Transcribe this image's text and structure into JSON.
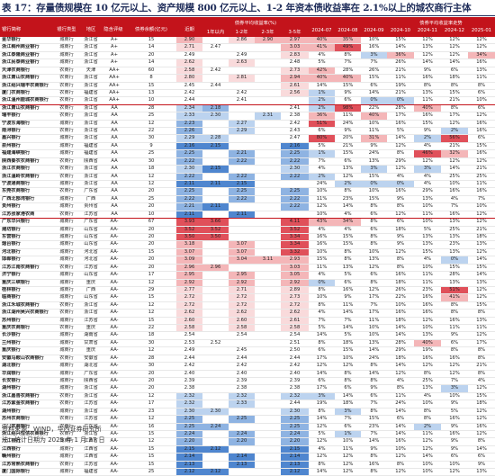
{
  "title": "表 17：存量债规模在 10 亿元以上、资产规模 800 亿元以上、1-2 年资本债收益率在 2.1%以上的城农商行主体",
  "headers": {
    "bank": "银行简称",
    "type": "银行类型",
    "prov": "地区",
    "rating": "隐含评级",
    "size": "债券余额(亿元)",
    "cur": "近期",
    "group_yield": "债券平均收益率(%)",
    "y1": "1年以内",
    "y12": "1-2年",
    "y23": "2-3年",
    "y35": "3-5年",
    "group_trend": "债券平均收益率走势",
    "m0": "2024-07",
    "m1": "2024-08",
    "m2": "2024-09",
    "m3": "2024-10",
    "m4": "2024-11",
    "m5": "2024-12",
    "m6": "2025-01"
  },
  "mid_labels": {
    "a": "银行二级资本债",
    "b": "银行永续债"
  },
  "rows": [
    [
      "金华银行",
      "城商行",
      "浙江省",
      "A+",
      "15",
      "2.90",
      "",
      "2.86",
      "2.90",
      "2.97",
      "40%",
      "35%",
      "10%",
      "15%",
      "12%",
      "12%",
      "12%"
    ],
    [
      "浙江稠州商业银行",
      "城商行",
      "浙江省",
      "A+",
      "14",
      "2.71",
      "2.47",
      "",
      "",
      "3.03",
      "41%",
      "49%",
      "16%",
      "14%",
      "13%",
      "12%",
      "12%"
    ],
    [
      "浙江泰隆商业银行",
      "城商行",
      "浙江省",
      "A+",
      "20",
      "2.49",
      "",
      "2.49",
      "",
      "2.83",
      "4%",
      "8%",
      "3%",
      "36%",
      "12%",
      "12%",
      "34%"
    ],
    [
      "浙江民泰商业银行",
      "城商行",
      "浙江省",
      "A+",
      "14",
      "2.62",
      "",
      "2.63",
      "",
      "2.48",
      "5%",
      "7%",
      "7%",
      "26%",
      "14%",
      "14%",
      "16%"
    ],
    [
      "天津农商银行",
      "农商行",
      "天津",
      "AA+",
      "60",
      "2.58",
      "2.42",
      "",
      "",
      "2.73",
      "42%",
      "28%",
      "26%",
      "21%",
      "9%",
      "6%",
      "13%"
    ],
    [
      "浙江萧山农商银行",
      "农商行",
      "浙江省",
      "AA+",
      "8",
      "2.80",
      "",
      "2.81",
      "",
      "2.94",
      "40%",
      "40%",
      "15%",
      "11%",
      "16%",
      "18%",
      "11%"
    ],
    [
      "浙江绍兴瑞丰农商银行",
      "农商行",
      "浙江省",
      "AA+",
      "15",
      "2.45",
      "2.44",
      "",
      "",
      "2.61",
      "14%",
      "15%",
      "6%",
      "19%",
      "8%",
      "8%",
      "8%"
    ],
    [
      "厦门农商银行",
      "农商行",
      "福建省",
      "AA+",
      "13",
      "2.42",
      "",
      "2.42",
      "",
      "2.56",
      "1%",
      "9%",
      "14%",
      "21%",
      "13%",
      "15%",
      "6%"
    ],
    [
      "浙江温州鹿城农商银行",
      "农商行",
      "浙江省",
      "AA+",
      "10",
      "2.44",
      "",
      "2.41",
      "",
      "",
      "2%",
      "6%",
      "0%",
      "0%",
      "11%",
      "21%",
      "10%"
    ],
    [
      "浙江萧山农商银行",
      "农商行",
      "浙江省",
      "AA",
      "28",
      "2.34",
      "2.18",
      "",
      "",
      "2.41",
      "2%",
      "98%",
      "22%",
      "28%",
      "40%",
      "8%",
      "6%"
    ],
    [
      "瑞丰银行",
      "农商行",
      "浙江省",
      "AA",
      "25",
      "2.33",
      "2.30",
      "",
      "2.31",
      "2.38",
      "36%",
      "11%",
      "40%",
      "17%",
      "16%",
      "17%",
      "12%"
    ],
    [
      "宁波东海银行",
      "城商行",
      "浙江省",
      "AA",
      "12",
      "2.23",
      "",
      "2.27",
      "",
      "2.42",
      "51%",
      "24%",
      "10%",
      "16%",
      "15%",
      "12%",
      "16%"
    ],
    [
      "南浔银行",
      "农商行",
      "浙江省",
      "AA",
      "22",
      "2.26",
      "",
      "2.29",
      "",
      "2.43",
      "6%",
      "9%",
      "11%",
      "5%",
      "9%",
      "2%",
      "16%"
    ],
    [
      "嘉兴银行",
      "城商行",
      "浙江省",
      "AA",
      "30",
      "2.29",
      "2.28",
      "",
      "",
      "2.47",
      "80%",
      "20%",
      "31%",
      "14%",
      "2%",
      "56%",
      "6%"
    ],
    [
      "泉州银行",
      "城商行",
      "福建省",
      "AA",
      "9",
      "2.16",
      "2.15",
      "",
      "",
      "2.16",
      "5%",
      "21%",
      "9%",
      "12%",
      "4%",
      "21%",
      "15%"
    ],
    [
      "福建海峡银行",
      "城商行",
      "福建省",
      "AA",
      "25",
      "2.25",
      "",
      "2.21",
      "",
      "2.25",
      "1%",
      "15%",
      "24%",
      "8%",
      "46%",
      "32%",
      "16%"
    ],
    [
      "陕西秦农农商银行",
      "农商行",
      "陕西省",
      "AA",
      "30",
      "2.22",
      "",
      "2.22",
      "",
      "2.22",
      "7%",
      "6%",
      "13%",
      "29%",
      "12%",
      "12%",
      "12%"
    ],
    [
      "浙江农商银行",
      "农商行",
      "浙江省",
      "AA",
      "18",
      "2.30",
      "2.15",
      "",
      "",
      "2.30",
      "4%",
      "13%",
      "3%",
      "12%",
      "3%",
      "14%",
      "21%"
    ],
    [
      "浙江温岭农商银行",
      "农商行",
      "浙江省",
      "AA",
      "12",
      "2.22",
      "",
      "2.22",
      "",
      "2.22",
      "2%",
      "12%",
      "15%",
      "4%",
      "4%",
      "25%",
      "25%"
    ],
    [
      "宁波通商银行",
      "城商行",
      "浙江省",
      "AA",
      "12",
      "2.11",
      "2.11",
      "2.15",
      "",
      "",
      "24%",
      "2%",
      "0%",
      "0%",
      "4%",
      "10%",
      "11%"
    ],
    [
      "东莞农商银行",
      "农商行",
      "广东省",
      "AA",
      "20",
      "2.25",
      "",
      "2.25",
      "",
      "2.25",
      "10%",
      "8%",
      "10%",
      "16%",
      "29%",
      "16%",
      "16%"
    ],
    [
      "广西北部湾银行",
      "城商行",
      "广西",
      "AA",
      "25",
      "2.22",
      "",
      "2.22",
      "",
      "2.22",
      "11%",
      "23%",
      "15%",
      "9%",
      "13%",
      "4%",
      "7%"
    ],
    [
      "贵州银行",
      "城商行",
      "贵州省",
      "AA",
      "20",
      "2.21",
      "2.11",
      "",
      "",
      "2.22",
      "12%",
      "14%",
      "8%",
      "8%",
      "10%",
      "7%",
      "10%"
    ],
    [
      "江苏张家港农商",
      "农商行",
      "江苏省",
      "AA",
      "10",
      "2.11",
      "",
      "2.11",
      "",
      "",
      "10%",
      "4%",
      "6%",
      "12%",
      "11%",
      "16%",
      "12%"
    ],
    [
      "广东华兴银行",
      "城商行",
      "广东省",
      "AA-",
      "67",
      "3.93",
      "3.66",
      "",
      "",
      "4.11",
      "43%",
      "34%",
      "8%",
      "6%",
      "10%",
      "13%",
      "12%"
    ],
    [
      "潍坊银行",
      "城商行",
      "山东省",
      "AA-",
      "20",
      "3.52",
      "3.52",
      "",
      "",
      "3.52",
      "4%",
      "4%",
      "6%",
      "18%",
      "5%",
      "25%",
      "21%"
    ],
    [
      "东营银行",
      "城商行",
      "山东省",
      "AA-",
      "20",
      "3.50",
      "3.50",
      "",
      "",
      "3.34",
      "16%",
      "15%",
      "8%",
      "9%",
      "13%",
      "13%",
      "18%"
    ],
    [
      "烟台银行",
      "城商行",
      "山东省",
      "AA-",
      "20",
      "3.18",
      "",
      "3.07",
      "",
      "3.34",
      "16%",
      "15%",
      "8%",
      "9%",
      "13%",
      "23%",
      "13%"
    ],
    [
      "河北银行",
      "城商行",
      "河北省",
      "AA-",
      "15",
      "3.07",
      "",
      "3.07",
      "",
      "3.32",
      "10%",
      "8%",
      "10%",
      "12%",
      "15%",
      "13%",
      "12%"
    ],
    [
      "邯郸银行",
      "城商行",
      "河北省",
      "AA-",
      "20",
      "3.09",
      "",
      "3.04",
      "3.11",
      "2.93",
      "15%",
      "8%",
      "13%",
      "8%",
      "4%",
      "0%",
      "14%"
    ],
    [
      "江苏江南农商银行",
      "农商行",
      "江苏省",
      "AA-",
      "20",
      "2.96",
      "2.96",
      "",
      "",
      "3.03",
      "11%",
      "13%",
      "12%",
      "8%",
      "10%",
      "15%",
      "15%"
    ],
    [
      "济宁银行",
      "城商行",
      "山东省",
      "AA-",
      "17",
      "2.95",
      "",
      "2.95",
      "",
      "3.05",
      "4%",
      "5%",
      "6%",
      "16%",
      "11%",
      "28%",
      "14%"
    ],
    [
      "重庆三峡银行",
      "城商行",
      "重庆",
      "AA-",
      "12",
      "2.92",
      "",
      "2.92",
      "",
      "2.92",
      "0%",
      "6%",
      "8%",
      "18%",
      "11%",
      "13%",
      "13%"
    ],
    [
      "桂林银行",
      "城商行",
      "广西",
      "AA-",
      "29",
      "2.77",
      "",
      "2.71",
      "",
      "2.89",
      "8%",
      "16%",
      "12%",
      "26%",
      "23%",
      "51%",
      "12%"
    ],
    [
      "临商银行",
      "城商行",
      "山东省",
      "AA-",
      "15",
      "2.72",
      "",
      "2.72",
      "",
      "2.73",
      "10%",
      "9%",
      "17%",
      "22%",
      "16%",
      "41%",
      "12%"
    ],
    [
      "浙江禾城农商银行",
      "农商行",
      "浙江省",
      "AA-",
      "12",
      "2.72",
      "",
      "2.72",
      "",
      "2.72",
      "8%",
      "11%",
      "7%",
      "10%",
      "16%",
      "8%",
      "15%"
    ],
    [
      "浙江湖州吴兴农商银行",
      "农商行",
      "浙江省",
      "AA-",
      "12",
      "2.62",
      "",
      "2.62",
      "",
      "2.62",
      "4%",
      "14%",
      "17%",
      "16%",
      "16%",
      "8%",
      "8%"
    ],
    [
      "苏州银行",
      "城商行",
      "江苏省",
      "AA-",
      "15",
      "2.60",
      "",
      "2.60",
      "",
      "2.61",
      "7%",
      "7%",
      "11%",
      "18%",
      "12%",
      "16%",
      "13%"
    ],
    [
      "重庆农商银行",
      "农商行",
      "重庆",
      "AA-",
      "22",
      "2.58",
      "",
      "2.58",
      "",
      "2.58",
      "5%",
      "14%",
      "10%",
      "14%",
      "10%",
      "11%",
      "11%"
    ],
    [
      "长沙银行",
      "城商行",
      "湖南省",
      "AA-",
      "18",
      "2.54",
      "",
      "2.54",
      "",
      "2.54",
      "14%",
      "5%",
      "10%",
      "14%",
      "13%",
      "9%",
      "12%"
    ],
    [
      "兰州银行",
      "城商行",
      "甘肃省",
      "AA-",
      "30",
      "2.53",
      "2.52",
      "",
      "",
      "2.51",
      "8%",
      "18%",
      "13%",
      "28%",
      "40%",
      "6%",
      "17%"
    ],
    [
      "重庆银行",
      "城商行",
      "重庆",
      "AA-",
      "12",
      "2.49",
      "",
      "2.45",
      "",
      "2.50",
      "6%",
      "15%",
      "14%",
      "29%",
      "19%",
      "8%",
      "8%"
    ],
    [
      "安徽马鞍山农商银行",
      "农商行",
      "安徽省",
      "AA-",
      "28",
      "2.44",
      "",
      "2.44",
      "",
      "2.44",
      "17%",
      "10%",
      "24%",
      "18%",
      "16%",
      "16%",
      "8%"
    ],
    [
      "湖北银行",
      "城商行",
      "湖北省",
      "AA-",
      "30",
      "2.42",
      "",
      "2.42",
      "",
      "2.42",
      "12%",
      "12%",
      "8%",
      "14%",
      "12%",
      "12%",
      "21%"
    ],
    [
      "华润银行",
      "城商行",
      "广东省",
      "AA-",
      "20",
      "2.40",
      "",
      "2.40",
      "",
      "2.40",
      "14%",
      "8%",
      "14%",
      "12%",
      "8%",
      "12%",
      "8%"
    ],
    [
      "长安银行",
      "城商行",
      "陕西省",
      "AA-",
      "20",
      "2.39",
      "",
      "2.39",
      "",
      "2.39",
      "6%",
      "8%",
      "8%",
      "4%",
      "25%",
      "7%",
      "4%"
    ],
    [
      "湖州银行",
      "城商行",
      "浙江省",
      "AA-",
      "20",
      "2.38",
      "",
      "2.38",
      "",
      "2.38",
      "17%",
      "6%",
      "9%",
      "8%",
      "13%",
      "3%",
      "12%"
    ],
    [
      "浙江嘉善农商银行",
      "农商行",
      "浙江省",
      "AA-",
      "12",
      "2.32",
      "",
      "2.32",
      "",
      "2.32",
      "3%",
      "14%",
      "6%",
      "11%",
      "4%",
      "10%",
      "15%"
    ],
    [
      "江苏紫金农商银行",
      "农商行",
      "江苏省",
      "AA-",
      "17",
      "2.32",
      "",
      "2.33",
      "",
      "2.44",
      "19%",
      "18%",
      "7%",
      "24%",
      "10%",
      "9%",
      "18%"
    ],
    [
      "湖州银行",
      "城商行",
      "浙江省",
      "AA-",
      "23",
      "2.30",
      "2.30",
      "",
      "",
      "2.30",
      "8%",
      "3%",
      "8%",
      "14%",
      "8%",
      "5%",
      "12%"
    ],
    [
      "苏州农商银行",
      "农商行",
      "江苏省",
      "AA-",
      "12",
      "2.25",
      "",
      "2.25",
      "",
      "2.25",
      "14%",
      "7%",
      "15%",
      "6%",
      "8%",
      "16%",
      "12%"
    ],
    [
      "江门农商银行",
      "农商行",
      "广东省",
      "AA-",
      "16",
      "2.25",
      "2.24",
      "",
      "",
      "2.25",
      "12%",
      "6%",
      "23%",
      "14%",
      "2%",
      "9%",
      "16%"
    ],
    [
      "浙江绍兴恒信农商银行",
      "农商行",
      "浙江省",
      "AA-",
      "15",
      "2.24",
      "",
      "2.24",
      "",
      "2.24",
      "5%",
      "1%",
      "7%",
      "14%",
      "11%",
      "16%",
      "12%"
    ],
    [
      "九江银行",
      "城商行",
      "江西省",
      "AA-",
      "12",
      "2.20",
      "",
      "2.20",
      "",
      "2.20",
      "12%",
      "10%",
      "14%",
      "16%",
      "12%",
      "9%",
      "8%"
    ],
    [
      "江西银行",
      "城商行",
      "江西省",
      "AA-",
      "15",
      "2.15",
      "2.12",
      "",
      "",
      "2.15",
      "4%",
      "11%",
      "9%",
      "10%",
      "12%",
      "9%",
      "14%"
    ],
    [
      "赣州银行",
      "城商行",
      "江西省",
      "AA-",
      "15",
      "2.14",
      "",
      "2.14",
      "",
      "2.14",
      "12%",
      "12%",
      "8%",
      "12%",
      "14%",
      "6%",
      "6%"
    ],
    [
      "江苏常熟农商银行",
      "农商行",
      "江苏省",
      "AA-",
      "15",
      "2.13",
      "",
      "2.13",
      "",
      "2.13",
      "8%",
      "12%",
      "16%",
      "8%",
      "10%",
      "10%",
      "9%"
    ],
    [
      "厦门国际银行",
      "城商行",
      "福建省",
      "AA-",
      "25",
      "2.12",
      "2.12",
      "",
      "",
      "2.12",
      "14%",
      "12%",
      "8%",
      "12%",
      "10%",
      "12%",
      "13%"
    ]
  ],
  "sep_after": [
    8,
    23
  ],
  "colors": {
    "header_red": "#c3131b",
    "pink": "#f4b6b8",
    "strong_red": "#e0505a",
    "blue": "#4f86cf",
    "light_blue": "#bcd3ef",
    "mid_blue": "#8eb3e2"
  },
  "notes": {
    "source": "资料来源：WIND，华西证券研究所",
    "note": "注：统计日期为 2025 年 1 月 27 日"
  }
}
